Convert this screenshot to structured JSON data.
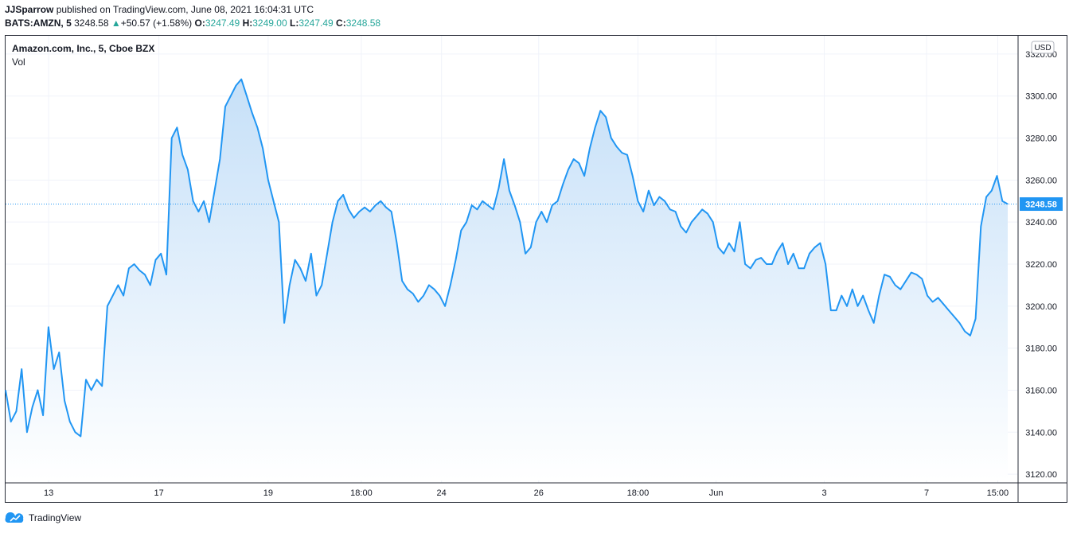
{
  "header": {
    "author": "JJSparrow",
    "published_text": "published on TradingView.com, June 08, 2021 16:04:31 UTC",
    "symbol": "BATS:AMZN, 5",
    "last": "3248.58",
    "arrow": "▲",
    "change": "+50.57 (+1.58%)",
    "o_label": "O:",
    "o_value": "3247.49",
    "h_label": "H:",
    "h_value": "3249.00",
    "l_label": "L:",
    "l_value": "3247.49",
    "c_label": "C:",
    "c_value": "3248.58"
  },
  "legend": {
    "title": "Amazon.com, Inc., 5, Cboe BZX",
    "vol": "Vol"
  },
  "currency": "USD",
  "price_label": "3248.58",
  "footer": {
    "brand": "TradingView"
  },
  "colors": {
    "line": "#2196f3",
    "fill_top": "#c6e0f8",
    "fill_bottom": "#ffffff",
    "vol_up": "#26a69a",
    "vol_down": "#ef5350",
    "grid": "#f0f3fa",
    "price_tag": "#2196f3"
  },
  "chart_data": {
    "type": "area",
    "title": "Amazon.com, Inc., 5, Cboe BZX",
    "ylim": [
      3117,
      3323
    ],
    "y_ticks": [
      "3320.00",
      "3300.00",
      "3280.00",
      "3260.00",
      "3240.00",
      "3220.00",
      "3200.00",
      "3180.00",
      "3160.00",
      "3140.00",
      "3120.00"
    ],
    "x_ticks": [
      "13",
      "17",
      "19",
      "18:00",
      "24",
      "26",
      "18:00",
      "Jun",
      "3",
      "7",
      "15:00"
    ],
    "last_price": 3248.58,
    "series": [
      {
        "values": [
          3160,
          3145,
          3150,
          3170,
          3140,
          3152,
          3160,
          3148,
          3190,
          3170,
          3178,
          3155,
          3145,
          3140,
          3138,
          3165,
          3160,
          3165,
          3162,
          3200,
          3205,
          3210,
          3205,
          3218,
          3220,
          3217,
          3215,
          3210,
          3222,
          3225,
          3215,
          3280,
          3285,
          3272,
          3265,
          3250,
          3245,
          3250,
          3240,
          3255,
          3270,
          3295,
          3300,
          3305,
          3308,
          3300,
          3292,
          3285,
          3275,
          3260,
          3250,
          3240,
          3192,
          3210,
          3222,
          3218,
          3212,
          3225,
          3205,
          3210,
          3225,
          3240,
          3250,
          3253,
          3246,
          3242,
          3245,
          3247,
          3245,
          3248,
          3250,
          3247,
          3245,
          3230,
          3212,
          3208,
          3206,
          3202,
          3205,
          3210,
          3208,
          3205,
          3200,
          3210,
          3222,
          3236,
          3240,
          3248,
          3246,
          3250,
          3248,
          3246,
          3256,
          3270,
          3255,
          3248,
          3240,
          3225,
          3228,
          3240,
          3245,
          3240,
          3248,
          3250,
          3258,
          3265,
          3270,
          3268,
          3262,
          3275,
          3285,
          3293,
          3290,
          3280,
          3276,
          3273,
          3272,
          3262,
          3250,
          3245,
          3255,
          3248,
          3252,
          3250,
          3246,
          3245,
          3238,
          3235,
          3240,
          3243,
          3246,
          3244,
          3240,
          3228,
          3225,
          3230,
          3226,
          3240,
          3220,
          3218,
          3222,
          3223,
          3220,
          3220,
          3226,
          3230,
          3220,
          3225,
          3218,
          3218,
          3225,
          3228,
          3230,
          3220,
          3198,
          3198,
          3205,
          3200,
          3208,
          3200,
          3205,
          3198,
          3192,
          3205,
          3215,
          3214,
          3210,
          3208,
          3212,
          3216,
          3215,
          3213,
          3205,
          3202,
          3204,
          3201,
          3198,
          3195,
          3192,
          3188,
          3186,
          3194,
          3238,
          3252,
          3255,
          3262,
          3250,
          3248.58
        ]
      }
    ],
    "volume_note": "volume histogram (Vol) shown as green/red bars at the bottom"
  }
}
